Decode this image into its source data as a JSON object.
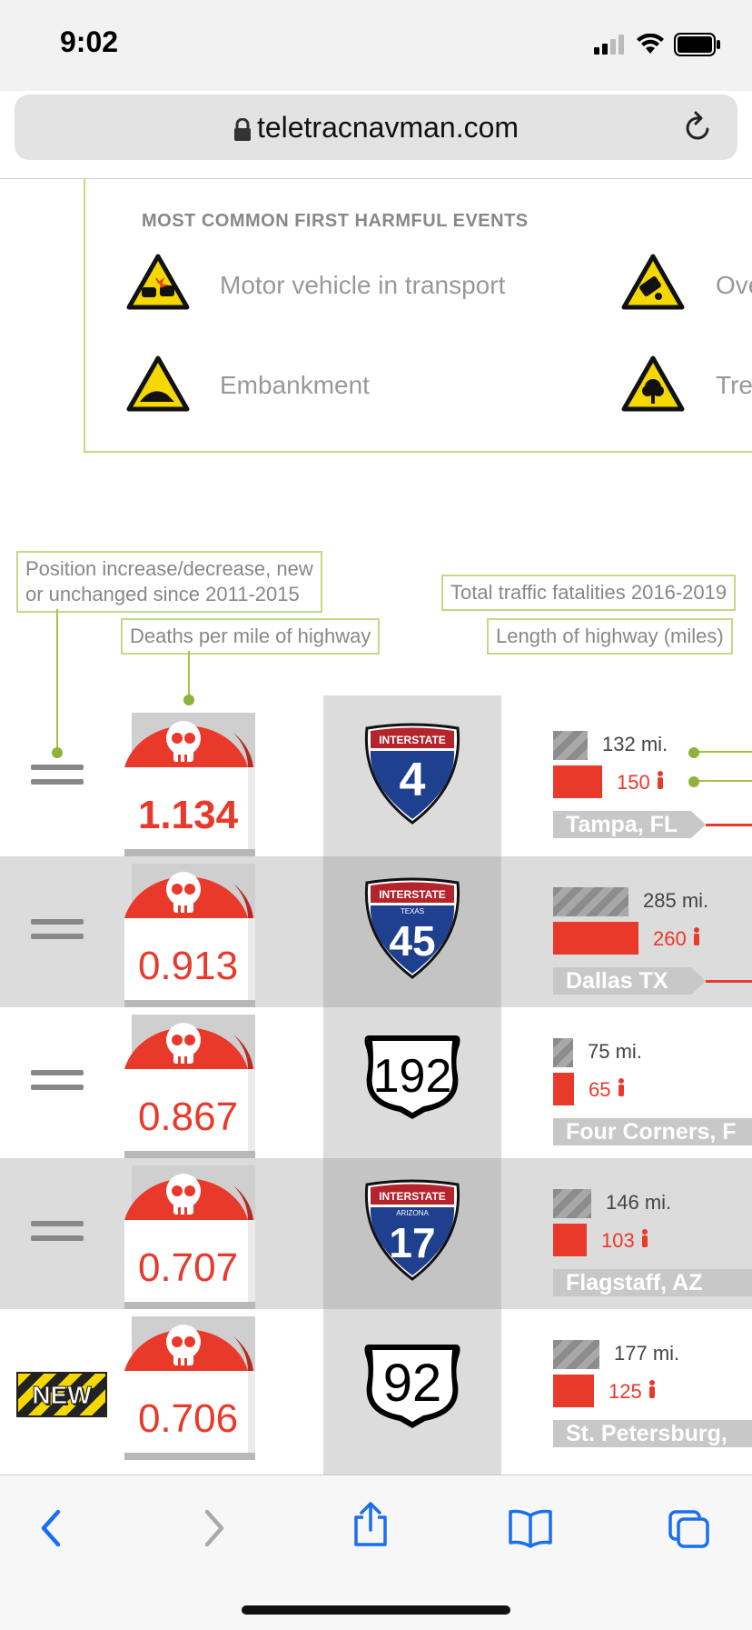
{
  "status": {
    "time": "9:02"
  },
  "browser": {
    "url": "teletracnavman.com"
  },
  "events": {
    "title": "MOST COMMON FIRST HARMFUL EVENTS",
    "items": [
      "Motor vehicle in transport",
      "Ove",
      "Embankment",
      "Tre"
    ]
  },
  "callouts": {
    "position": "Position increase/decrease, new or unchanged since 2011-2015",
    "position_line1": "Position increase/decrease, new",
    "position_line2": "or unchanged since 2011-2015",
    "deaths": "Deaths per mile of highway",
    "fatalities": "Total traffic fatalities 2016-2019",
    "length": "Length of highway (miles)"
  },
  "rows": [
    {
      "change": "unchanged",
      "deaths": "1.134",
      "highway": "4",
      "shield": "interstate",
      "shield_top": "INTERSTATE",
      "shield_state": "",
      "miles": "132 mi.",
      "fatalities": "150",
      "miles_value": 132,
      "fatalities_value": 150,
      "city": "Tampa, FL"
    },
    {
      "change": "unchanged",
      "deaths": "0.913",
      "highway": "45",
      "shield": "interstate",
      "shield_top": "INTERSTATE",
      "shield_state": "TEXAS",
      "miles": "285 mi.",
      "fatalities": "260",
      "miles_value": 285,
      "fatalities_value": 260,
      "city": "Dallas TX"
    },
    {
      "change": "unchanged",
      "deaths": "0.867",
      "highway": "192",
      "shield": "us",
      "shield_top": "",
      "shield_state": "",
      "miles": "75 mi.",
      "fatalities": "65",
      "miles_value": 75,
      "fatalities_value": 65,
      "city": "Four Corners, F"
    },
    {
      "change": "unchanged",
      "deaths": "0.707",
      "highway": "17",
      "shield": "interstate",
      "shield_top": "INTERSTATE",
      "shield_state": "ARIZONA",
      "miles": "146 mi.",
      "fatalities": "103",
      "miles_value": 146,
      "fatalities_value": 103,
      "city": "Flagstaff, AZ"
    },
    {
      "change": "new",
      "new_label": "NEW",
      "deaths": "0.706",
      "highway": "92",
      "shield": "us",
      "shield_top": "",
      "shield_state": "",
      "miles": "177 mi.",
      "fatalities": "125",
      "miles_value": 177,
      "fatalities_value": 125,
      "city": "St. Petersburg,"
    }
  ],
  "icons": {
    "status": [
      "signal-icon",
      "wifi-icon",
      "battery-icon"
    ],
    "browser": [
      "lock-icon",
      "reload-icon"
    ],
    "toolbar": [
      "back-icon",
      "forward-icon",
      "share-icon",
      "bookmarks-icon",
      "tabs-icon"
    ]
  },
  "colors": {
    "accent_red": "#e8392b",
    "callout_green": "#c5d88a",
    "interstate_blue": "#1f3f8f"
  }
}
